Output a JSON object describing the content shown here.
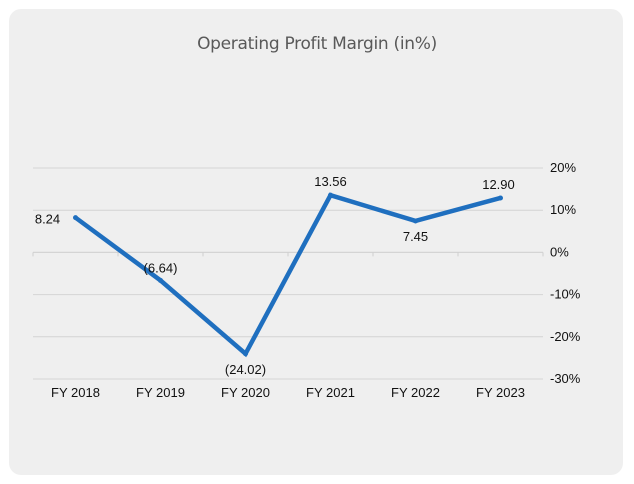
{
  "chart_data": {
    "type": "line",
    "title": "Operating Profit Margin (in%)",
    "categories": [
      "FY 2018",
      "FY 2019",
      "FY 2020",
      "FY 2021",
      "FY 2022",
      "FY 2023"
    ],
    "series": [
      {
        "name": "Operating Profit Margin",
        "values": [
          8.24,
          -6.64,
          -24.02,
          13.56,
          7.45,
          12.9
        ],
        "labels": [
          "8.24",
          "(6.64)",
          "(24.02)",
          "13.56",
          "7.45",
          "12.90"
        ]
      }
    ],
    "ylim": [
      -30,
      20
    ],
    "yticks": [
      20,
      10,
      0,
      -10,
      -20,
      -30
    ],
    "ytick_labels": [
      "20%",
      "10%",
      "0%",
      "-10%",
      "-20%",
      "-30%"
    ],
    "y_axis_side": "right",
    "grid": true,
    "xlabel": "",
    "ylabel": "",
    "colors": {
      "line": "#1f6fbf",
      "grid": "#d4d4d4",
      "background": "#efefef"
    }
  }
}
